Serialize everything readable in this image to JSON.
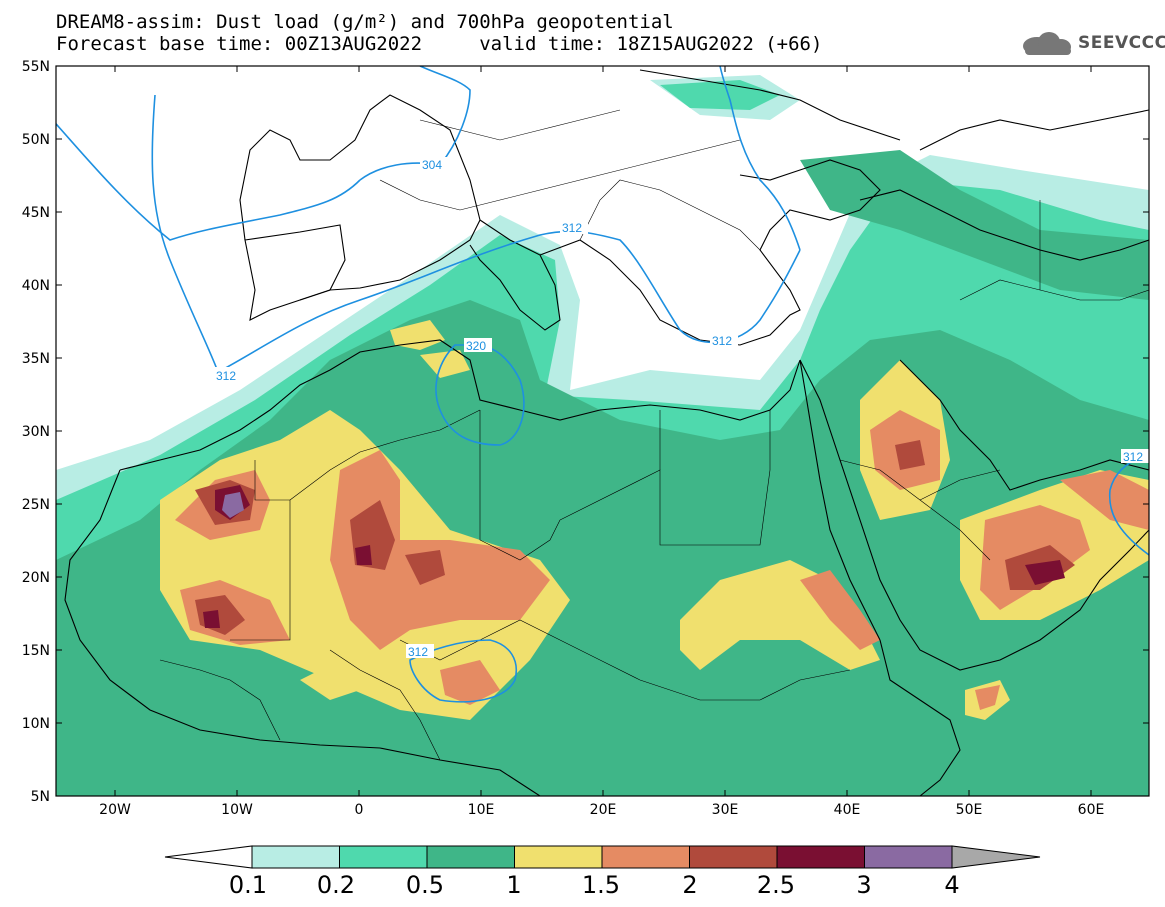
{
  "header": {
    "title_line1": "DREAM8-assim: Dust load (g/m²) and 700hPa geopotential",
    "title_line2": "Forecast base time: 00Z13AUG2022     valid time: 18Z15AUG2022 (+66)",
    "logo_text": "SEEVCCC"
  },
  "axes": {
    "lat_labels": [
      "55N",
      "50N",
      "45N",
      "40N",
      "35N",
      "30N",
      "25N",
      "20N",
      "15N",
      "10N",
      "5N"
    ],
    "lon_labels": [
      "20W",
      "10W",
      "0",
      "10E",
      "20E",
      "30E",
      "40E",
      "50E",
      "60E"
    ]
  },
  "contours": {
    "labels": [
      "304",
      "312",
      "312",
      "312",
      "320",
      "312",
      "312"
    ],
    "color": "#1e90e0"
  },
  "colorbar": {
    "labels": [
      "0.1",
      "0.2",
      "0.5",
      "1",
      "1.5",
      "2",
      "2.5",
      "3",
      "4"
    ],
    "colors": [
      "#b8ede4",
      "#4fd9ad",
      "#3fb688",
      "#f0e06e",
      "#e58b63",
      "#b04a3c",
      "#7a0f32",
      "#8a6aa2"
    ],
    "under_color": "#ffffff",
    "over_color": "#a8a8a8"
  },
  "palette": {
    "land_outline": "#000000",
    "dust_none": "#ffffff"
  }
}
